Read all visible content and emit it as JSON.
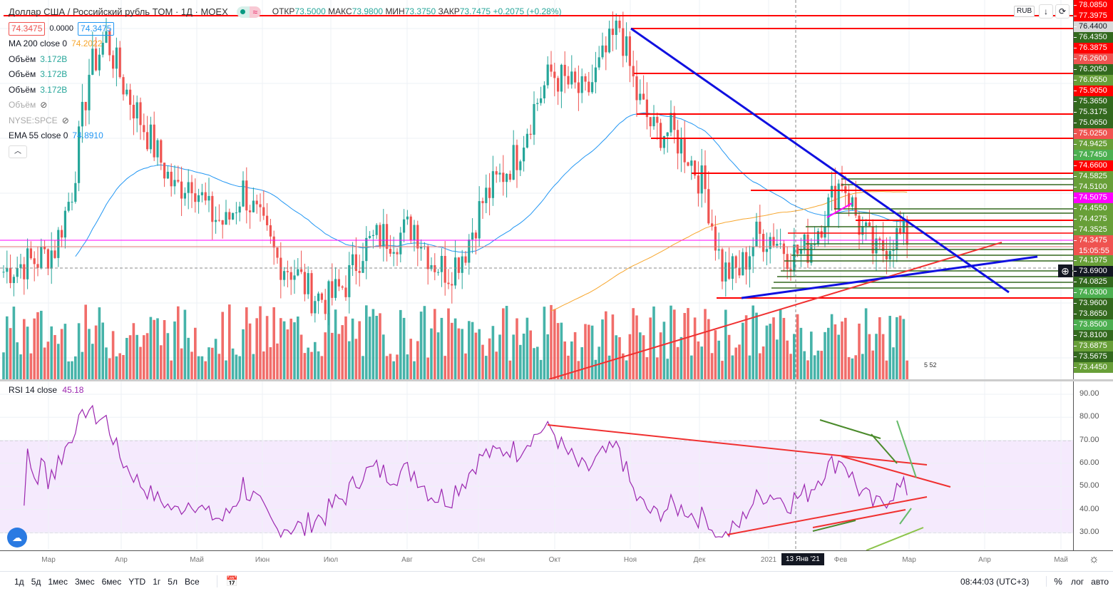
{
  "header": {
    "title": "Доллар США / Российский рубль TOM · 1Д · MOEX",
    "open_label": "ОТКР",
    "open": "73.5000",
    "high_label": "МАКС",
    "high": "73.9800",
    "low_label": "МИН",
    "low": "73.3750",
    "close_label": "ЗАКР",
    "close": "73.7475",
    "change": "+0.2075 (+0.28%)"
  },
  "price_boxes": {
    "bid": "74.3475",
    "spread": "0.0000",
    "ask": "74.3475"
  },
  "indicators": [
    {
      "name": "MA 200 close 0",
      "value": "74.2022",
      "color": "#f7a62d"
    },
    {
      "name": "Объём",
      "value": "3.172B",
      "color": "#26a69a"
    },
    {
      "name": "Объём",
      "value": "3.172B",
      "color": "#26a69a"
    },
    {
      "name": "Объём",
      "value": "3.172B",
      "color": "#26a69a"
    },
    {
      "name": "Объём",
      "value": "",
      "hidden": true
    },
    {
      "name": "NYSE:SPCE",
      "value": "",
      "hidden": true
    },
    {
      "name": "EMA 55 close 0",
      "value": "74.8910",
      "color": "#2196f3"
    }
  ],
  "currency": "RUB",
  "price_labels": [
    {
      "v": "78.0850",
      "c": "#ff0000"
    },
    {
      "v": "77.3975",
      "c": "#ff0000"
    },
    {
      "v": "76.4400",
      "c": "#d9d9d9",
      "t": "#131722"
    },
    {
      "v": "76.4350",
      "c": "#33691e"
    },
    {
      "v": "76.3875",
      "c": "#ff0000"
    },
    {
      "v": "76.2600",
      "c": "#ef5350"
    },
    {
      "v": "76.2050",
      "c": "#33691e"
    },
    {
      "v": "76.0550",
      "c": "#689f38"
    },
    {
      "v": "75.9050",
      "c": "#ff0000"
    },
    {
      "v": "75.3650",
      "c": "#33691e"
    },
    {
      "v": "75.3175",
      "c": "#33691e"
    },
    {
      "v": "75.0650",
      "c": "#33691e"
    },
    {
      "v": "75.0250",
      "c": "#ef5350"
    },
    {
      "v": "74.9425",
      "c": "#689f38"
    },
    {
      "v": "74.7450",
      "c": "#4caf50"
    },
    {
      "v": "74.6600",
      "c": "#ff0000"
    },
    {
      "v": "74.5825",
      "c": "#689f38"
    },
    {
      "v": "74.5100",
      "c": "#689f38"
    },
    {
      "v": "74.5075",
      "c": "#ff00ff"
    },
    {
      "v": "74.4550",
      "c": "#689f38"
    },
    {
      "v": "74.4275",
      "c": "#689f38"
    },
    {
      "v": "74.3525",
      "c": "#689f38"
    },
    {
      "v": "74.3475",
      "c": "#ef5350",
      "sub": "15:05:55"
    },
    {
      "v": "74.1975",
      "c": "#689f38"
    },
    {
      "v": "73.6900",
      "c": "#131722"
    },
    {
      "v": "74.0825",
      "c": "#33691e"
    },
    {
      "v": "74.0300",
      "c": "#4caf50"
    },
    {
      "v": "73.9600",
      "c": "#33691e"
    },
    {
      "v": "73.8650",
      "c": "#33691e"
    },
    {
      "v": "73.8500",
      "c": "#4caf50"
    },
    {
      "v": "73.8100",
      "c": "#33691e"
    },
    {
      "v": "73.6875",
      "c": "#689f38"
    },
    {
      "v": "73.5675",
      "c": "#33691e"
    },
    {
      "v": "73.4450",
      "c": "#689f38"
    }
  ],
  "series": {
    "weekly_close": [
      69.5,
      69.8,
      70,
      70.5,
      73,
      78,
      79.5,
      77.5,
      76,
      74.5,
      73,
      73.5,
      72,
      71.5,
      73,
      71.5,
      70,
      69.5,
      68.5,
      68.3,
      69,
      70.5,
      71,
      71,
      71.5,
      70,
      69.5,
      70.5,
      72.5,
      73.5,
      74.5,
      76.5,
      78,
      77.5,
      77,
      78.5,
      80,
      77,
      75.5,
      75.5,
      74.5,
      73,
      69.5,
      69.5,
      71,
      71,
      70.2,
      70.5,
      72,
      73.5,
      71.5,
      70.2,
      71,
      71
    ]
  },
  "volume_badge": "5 52",
  "rsi": {
    "label": "RSI 14 close",
    "value": "45.18",
    "ticks": [
      "90.00",
      "80.00",
      "70.00",
      "60.00",
      "50.00",
      "40.00",
      "30.00"
    ]
  },
  "time_axis": [
    "Мар",
    "Апр",
    "Май",
    "Июн",
    "Июл",
    "Авг",
    "Сен",
    "Окт",
    "Ноя",
    "Дек",
    "2021",
    "Фев",
    "Мар",
    "Апр",
    "Май"
  ],
  "crosshair_date": "13 Янв '21",
  "ranges": [
    "1д",
    "5д",
    "1мес",
    "3мес",
    "6мес",
    "YTD",
    "1г",
    "5л",
    "Все"
  ],
  "clock": "08:44:03 (UTC+3)",
  "scale_options": {
    "percent": "%",
    "log": "лог",
    "auto": "авто"
  },
  "colors": {
    "up": "#26a69a",
    "down": "#ef5350",
    "ema": "#2196f3",
    "ma": "#f7a62d",
    "rsi": "#9c27b0"
  }
}
